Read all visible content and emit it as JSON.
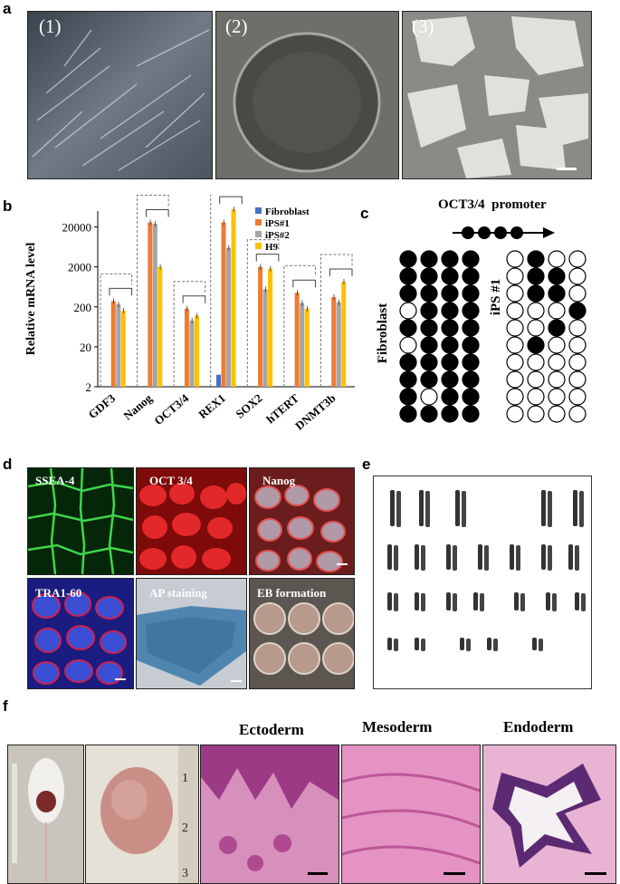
{
  "panels": {
    "a": {
      "label": "a",
      "images": [
        {
          "tag": "(1)"
        },
        {
          "tag": "(2)"
        },
        {
          "tag": "(3)"
        }
      ]
    },
    "b": {
      "label": "b",
      "chart_data": {
        "type": "bar",
        "ylabel": "Relative mRNA level",
        "yscale": "log",
        "ylim": [
          2,
          50000
        ],
        "yticks": [
          "2",
          "20",
          "200",
          "2000",
          "20000"
        ],
        "categories": [
          "GDF3",
          "Nanog",
          "OCT3/4",
          "REX1",
          "SOX2",
          "hTERT",
          "DNMT3b"
        ],
        "legend_position": "top-right",
        "series": [
          {
            "name": "Fibroblast",
            "color": "#4472c4",
            "values": [
              2,
              2,
              2,
              4,
              2,
              2,
              2
            ]
          },
          {
            "name": "iPS#1",
            "color": "#ed7d31",
            "values": [
              280,
              26000,
              180,
              26000,
              2000,
              450,
              350
            ]
          },
          {
            "name": "iPS#2",
            "color": "#a5a5a5",
            "values": [
              230,
              24000,
              90,
              6000,
              550,
              250,
              260
            ]
          },
          {
            "name": "H9",
            "color": "#ffc000",
            "values": [
              160,
              2000,
              120,
              55000,
              1800,
              180,
              850
            ]
          }
        ]
      }
    },
    "c": {
      "label": "c",
      "promoter": "OCT3/4  promoter",
      "row1_label": "Fibroblast",
      "row2_label": "iPS #1",
      "fibroblast_grid": [
        [
          1,
          1,
          1,
          1
        ],
        [
          1,
          1,
          1,
          1
        ],
        [
          1,
          1,
          1,
          1
        ],
        [
          0,
          1,
          1,
          1
        ],
        [
          1,
          1,
          1,
          1
        ],
        [
          0,
          1,
          1,
          1
        ],
        [
          1,
          1,
          1,
          1
        ],
        [
          1,
          1,
          1,
          1
        ],
        [
          1,
          0,
          1,
          1
        ],
        [
          1,
          1,
          1,
          1
        ]
      ],
      "ips_grid": [
        [
          0,
          1,
          0,
          0
        ],
        [
          0,
          1,
          1,
          0
        ],
        [
          0,
          1,
          1,
          0
        ],
        [
          0,
          0,
          0,
          1
        ],
        [
          0,
          0,
          1,
          0
        ],
        [
          0,
          1,
          0,
          0
        ],
        [
          0,
          0,
          0,
          0
        ],
        [
          0,
          0,
          0,
          0
        ],
        [
          0,
          0,
          0,
          0
        ],
        [
          0,
          0,
          0,
          0
        ]
      ]
    },
    "d": {
      "label": "d",
      "tiles": [
        {
          "name": "SSEA-4"
        },
        {
          "name": "OCT 3/4"
        },
        {
          "name": "Nanog"
        },
        {
          "name": "TRA1-60"
        },
        {
          "name": "AP staining"
        },
        {
          "name": "EB formation"
        }
      ]
    },
    "e": {
      "label": "e"
    },
    "f": {
      "label": "f",
      "titles": [
        "Ectoderm",
        "Mesoderm",
        "Endoderm"
      ]
    }
  }
}
